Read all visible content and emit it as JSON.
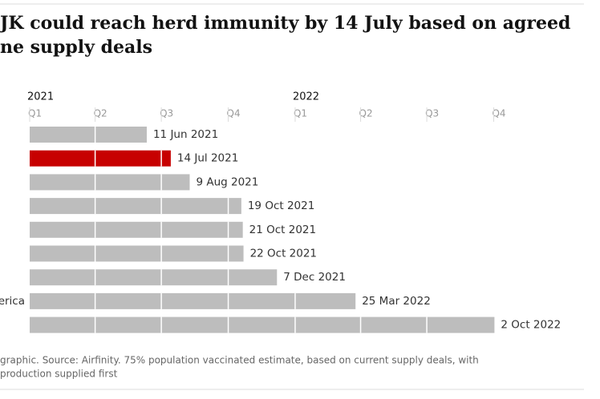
{
  "chart_data": {
    "type": "bar",
    "title_lines": [
      "JK could reach herd immunity by 14 July based on agreed",
      "ne supply deals"
    ],
    "years": [
      {
        "value": "2021-01-01",
        "label": "2021"
      },
      {
        "value": "2022-01-01",
        "label": "2022"
      }
    ],
    "categories": [
      null,
      null,
      null,
      null,
      null,
      null,
      null,
      "erica",
      null
    ],
    "values": [
      "2021-06-11",
      "2021-07-14",
      "2021-08-09",
      "2021-10-19",
      "2021-10-21",
      "2021-10-22",
      "2021-12-07",
      "2022-03-25",
      "2022-10-02"
    ],
    "value_labels": [
      "11 Jun 2021",
      "14 Jul 2021",
      "9 Aug 2021",
      "19 Oct 2021",
      "21 Oct 2021",
      "22 Oct 2021",
      "7 Dec 2021",
      "25 Mar 2022",
      "2 Oct 2022"
    ],
    "colors": [
      "#bdbdbd",
      "#c70000",
      "#bdbdbd",
      "#bdbdbd",
      "#bdbdbd",
      "#bdbdbd",
      "#bdbdbd",
      "#bdbdbd",
      "#bdbdbd"
    ],
    "xlim": [
      "2021-01-01",
      "2022-12-31"
    ],
    "xticks": [
      {
        "value": "2021-01-01",
        "label": "Q1"
      },
      {
        "value": "2021-04-01",
        "label": "Q2"
      },
      {
        "value": "2021-07-01",
        "label": "Q3"
      },
      {
        "value": "2021-10-01",
        "label": "Q4"
      },
      {
        "value": "2022-01-01",
        "label": "Q1"
      },
      {
        "value": "2022-04-01",
        "label": "Q2"
      },
      {
        "value": "2022-07-01",
        "label": "Q3"
      },
      {
        "value": "2022-10-01",
        "label": "Q4"
      }
    ],
    "grid": true,
    "footnote_lines": [
      "graphic. Source: Airfinity. 75% population vaccinated estimate, based on current supply deals, with",
      "production supplied first"
    ]
  }
}
